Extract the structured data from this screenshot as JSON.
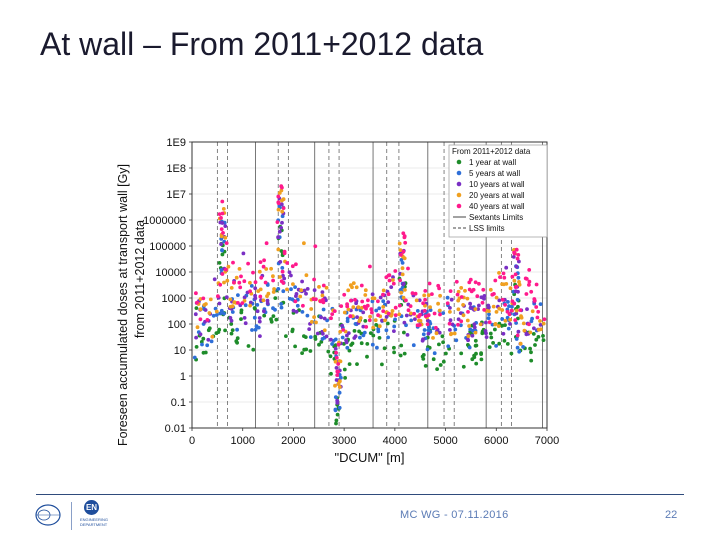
{
  "slide": {
    "title": "At wall – From 2011+2012 data",
    "footer": "MC WG - 07.11.2016",
    "page_number": "22",
    "logo_en_text": "EN",
    "logo_en_caption": "ENGINEERING\nDEPARTMENT"
  },
  "colors": {
    "title": "#1a1a2e",
    "footer": "#5b7bb5",
    "series": [
      "#1e8c2a",
      "#2e6fd8",
      "#7a2fc4",
      "#f0a020",
      "#ff1a8c"
    ]
  },
  "chart_data": {
    "type": "scatter",
    "title": "",
    "xlabel": "\"DCUM\" [m]",
    "ylabel_line1": "Foreseen accumulated doses at transport wall [Gy]",
    "ylabel_line2": "from 2011+2012 data",
    "xlim": [
      0,
      7000
    ],
    "ylim_log10": [
      -2,
      9
    ],
    "x_ticks": [
      0,
      1000,
      2000,
      3000,
      4000,
      5000,
      6000,
      7000
    ],
    "x_tick_labels": [
      "0",
      "1000",
      "2000",
      "3000",
      "4000",
      "5000",
      "6000",
      "7000"
    ],
    "y_ticks_log10": [
      -2,
      -1,
      0,
      1,
      2,
      3,
      4,
      5,
      6,
      7,
      8,
      9
    ],
    "y_tick_labels": [
      "0.01",
      "0.1",
      "1",
      "10",
      "100",
      "1000",
      "10000",
      "100000",
      "1000000",
      "1E7",
      "1E8",
      "1E9"
    ],
    "grid": true,
    "legend_title": "From 2011+2012 data",
    "legend_position": "top-right",
    "series": [
      {
        "name": "1 year at wall",
        "color": "#1e8c2a",
        "offset_log10": 0.0
      },
      {
        "name": "5 years at wall",
        "color": "#2e6fd8",
        "offset_log10": 0.7
      },
      {
        "name": "10 years at wall",
        "color": "#7a2fc4",
        "offset_log10": 1.0
      },
      {
        "name": "20 years at wall",
        "color": "#f0a020",
        "offset_log10": 1.3
      },
      {
        "name": "40 years at wall",
        "color": "#ff1a8c",
        "offset_log10": 1.6
      }
    ],
    "sextant_limits": {
      "name": "Sextants Limits",
      "style": "solid",
      "x": [
        1250,
        2420,
        3570,
        4650,
        5800,
        6912
      ]
    },
    "lss_limits": {
      "name": "LSS limits",
      "style": "dashed",
      "x": [
        0,
        500,
        700,
        1700,
        1900,
        2700,
        2900,
        3840,
        4080,
        4970,
        5170,
        6100,
        6300
      ]
    },
    "profile_1yr_log10": [
      [
        0,
        1.4
      ],
      [
        150,
        1.3
      ],
      [
        300,
        1.0
      ],
      [
        400,
        0.9
      ],
      [
        500,
        2.2
      ],
      [
        560,
        2.6
      ],
      [
        620,
        2.3
      ],
      [
        700,
        2.1
      ],
      [
        800,
        2.0
      ],
      [
        1000,
        1.9
      ],
      [
        1250,
        1.9
      ],
      [
        1500,
        2.0
      ],
      [
        1650,
        2.6
      ],
      [
        1720,
        3.1
      ],
      [
        1800,
        2.4
      ],
      [
        2000,
        1.9
      ],
      [
        2400,
        1.6
      ],
      [
        2700,
        1.1
      ],
      [
        2800,
        0.4
      ],
      [
        2870,
        -0.6
      ],
      [
        2950,
        0.4
      ],
      [
        3100,
        1.3
      ],
      [
        3500,
        1.3
      ],
      [
        3700,
        1.2
      ],
      [
        3900,
        1.6
      ],
      [
        4050,
        1.6
      ],
      [
        4300,
        1.3
      ],
      [
        4700,
        1.1
      ],
      [
        5000,
        0.9
      ],
      [
        5200,
        1.2
      ],
      [
        5600,
        1.2
      ],
      [
        6000,
        1.3
      ],
      [
        6200,
        1.6
      ],
      [
        6350,
        1.5
      ],
      [
        6450,
        0.6
      ],
      [
        6550,
        1.3
      ],
      [
        7000,
        1.2
      ]
    ]
  }
}
